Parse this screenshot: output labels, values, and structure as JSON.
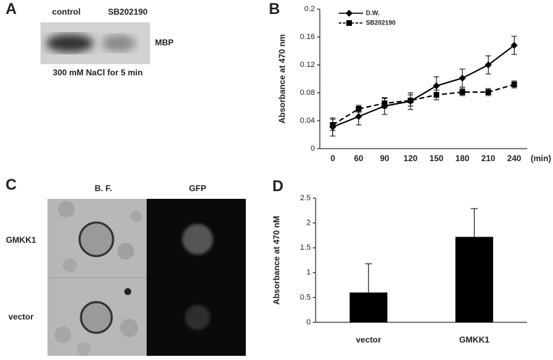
{
  "panel_letters": [
    "A",
    "B",
    "C",
    "D"
  ],
  "panel_a": {
    "lanes": [
      "control",
      "SB202190"
    ],
    "band_label": "MBP",
    "caption": "300 mM NaCl for 5 min"
  },
  "panel_c": {
    "columns": [
      "B. F.",
      "GFP"
    ],
    "rows": [
      "GMKK1",
      "vector"
    ]
  },
  "chart_data": [
    {
      "type": "line",
      "ylabel": "Absorbance at 470 nm",
      "xlabel": "(min)",
      "categories": [
        "0",
        "60",
        "90",
        "120",
        "150",
        "180",
        "210",
        "240"
      ],
      "ylim": [
        0,
        0.2
      ],
      "yticks": [
        0,
        0.04,
        0.08,
        0.12,
        0.16,
        0.2
      ],
      "series": [
        {
          "name": "D.W.",
          "color": "#000000",
          "linestyle": "solid",
          "marker": "diamond",
          "values": [
            0.031,
            0.046,
            0.061,
            0.068,
            0.09,
            0.101,
            0.12,
            0.148
          ],
          "errors": [
            0.013,
            0.012,
            0.012,
            0.012,
            0.013,
            0.013,
            0.013,
            0.013
          ]
        },
        {
          "name": "SB202190",
          "color": "#000000",
          "linestyle": "dashed",
          "marker": "square",
          "values": [
            0.034,
            0.057,
            0.065,
            0.069,
            0.077,
            0.081,
            0.081,
            0.092
          ],
          "errors": [
            0.008,
            0.005,
            0.007,
            0.008,
            0.007,
            0.005,
            0.005,
            0.005
          ]
        }
      ]
    },
    {
      "type": "bar",
      "ylabel": "Absorbance at 470 nM",
      "categories": [
        "vector",
        "GMKK1"
      ],
      "color": "#000000",
      "values": [
        0.6,
        1.72
      ],
      "errors": [
        0.58,
        0.57
      ],
      "ylim": [
        0,
        2.5
      ],
      "yticks": [
        0,
        0.5,
        1,
        1.5,
        2,
        2.5
      ]
    }
  ]
}
